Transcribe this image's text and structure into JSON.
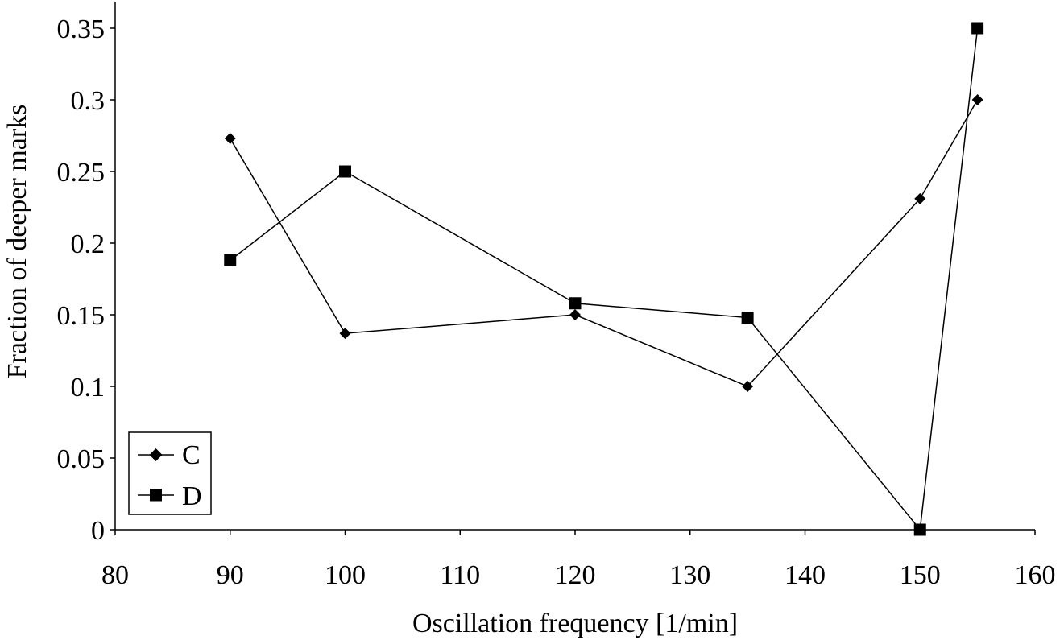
{
  "chart_data": {
    "type": "line",
    "title": "",
    "xlabel": "Oscillation frequency [1/min]",
    "ylabel": "Fraction of deeper marks",
    "xlim": [
      80,
      160
    ],
    "ylim": [
      0,
      0.35
    ],
    "x_ticks": [
      80,
      90,
      100,
      110,
      120,
      130,
      140,
      150,
      160
    ],
    "x_tick_labels": [
      "80",
      "90",
      "100",
      "110",
      "120",
      "130",
      "140",
      "150",
      "160"
    ],
    "y_ticks": [
      0,
      0.05,
      0.1,
      0.15,
      0.2,
      0.25,
      0.3,
      0.35
    ],
    "y_tick_labels": [
      "0",
      "0.05",
      "0.1",
      "0.15",
      "0.2",
      "0.25",
      "0.3",
      "0.35"
    ],
    "grid": false,
    "legend_position": "bottom-left",
    "series": [
      {
        "name": "C",
        "marker": "diamond",
        "color": "#000000",
        "x": [
          90,
          100,
          120,
          135,
          150,
          155
        ],
        "values": [
          0.273,
          0.137,
          0.15,
          0.1,
          0.231,
          0.3
        ]
      },
      {
        "name": "D",
        "marker": "square",
        "color": "#000000",
        "x": [
          90,
          100,
          120,
          135,
          150,
          155
        ],
        "values": [
          0.188,
          0.25,
          0.158,
          0.148,
          0.0,
          0.35
        ]
      }
    ]
  }
}
